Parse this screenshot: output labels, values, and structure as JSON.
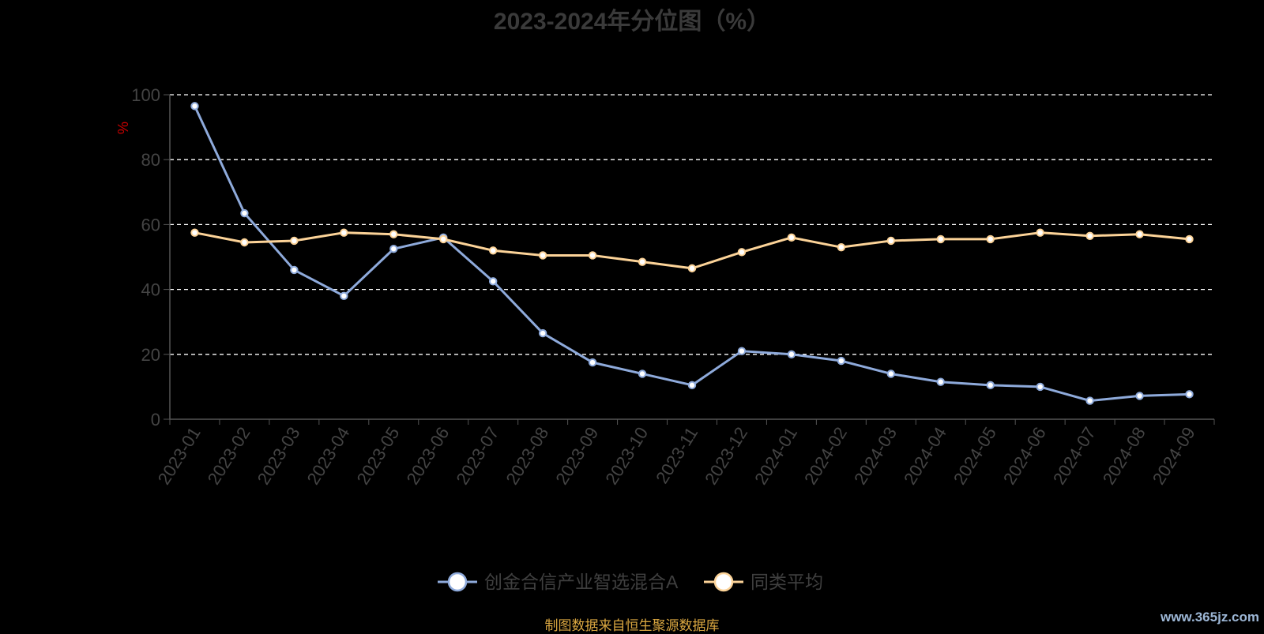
{
  "title": "2023-2024年分位图（%）",
  "footer": "制图数据来自恒生聚源数据库",
  "watermark": "www.365jz.com",
  "colors": {
    "background": "#000000",
    "fund": "#8eaadb",
    "average": "#fcd398",
    "grid": "#ffffff",
    "axis": "#555555",
    "tick_text": "#444444",
    "ylabel": "#cc0000"
  },
  "chart_data": {
    "type": "line",
    "title": "2023-2024年分位图（%）",
    "xlabel": "",
    "ylabel": "%",
    "ylim": [
      0,
      100
    ],
    "yticks": [
      0,
      20,
      40,
      60,
      80,
      100
    ],
    "grid": true,
    "legend_position": "bottom-center",
    "categories": [
      "2023-01",
      "2023-02",
      "2023-03",
      "2023-04",
      "2023-05",
      "2023-06",
      "2023-07",
      "2023-08",
      "2023-09",
      "2023-10",
      "2023-11",
      "2023-12",
      "2024-01",
      "2024-02",
      "2024-03",
      "2024-04",
      "2024-05",
      "2024-06",
      "2024-07",
      "2024-08",
      "2024-09"
    ],
    "series": [
      {
        "name": "创金合信产业智选混合A",
        "color": "#8eaadb",
        "values": [
          96.5,
          63.5,
          46,
          38,
          52.5,
          56,
          42.5,
          26.5,
          17.5,
          14,
          10.5,
          21,
          20,
          18,
          14,
          11.5,
          10.5,
          10,
          5.7,
          7.2,
          7.7
        ]
      },
      {
        "name": "同类平均",
        "color": "#fcd398",
        "values": [
          57.5,
          54.5,
          55,
          57.5,
          57,
          55.5,
          52,
          50.5,
          50.5,
          48.5,
          46.5,
          51.5,
          56,
          53,
          55,
          55.5,
          55.5,
          57.5,
          56.5,
          57,
          55.5
        ]
      }
    ]
  }
}
